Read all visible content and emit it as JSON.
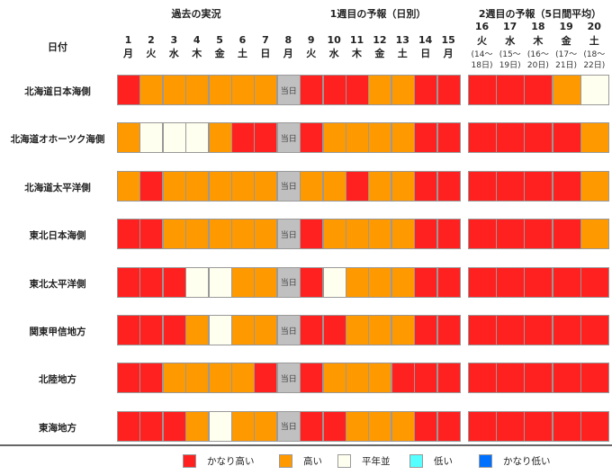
{
  "chart_data": {
    "type": "heatmap",
    "row_header": "日付",
    "section_headers": [
      "過去の実況",
      "1週目の予報（日別）",
      "2週目の予報（5日間平均）"
    ],
    "today_label": "当日",
    "columns": [
      {
        "day": "1",
        "weekday": "月"
      },
      {
        "day": "2",
        "weekday": "火"
      },
      {
        "day": "3",
        "weekday": "水"
      },
      {
        "day": "4",
        "weekday": "木"
      },
      {
        "day": "5",
        "weekday": "金"
      },
      {
        "day": "6",
        "weekday": "土"
      },
      {
        "day": "7",
        "weekday": "日"
      },
      {
        "day": "8",
        "weekday": "月"
      },
      {
        "day": "9",
        "weekday": "火"
      },
      {
        "day": "10",
        "weekday": "水"
      },
      {
        "day": "11",
        "weekday": "木"
      },
      {
        "day": "12",
        "weekday": "金"
      },
      {
        "day": "13",
        "weekday": "土"
      },
      {
        "day": "14",
        "weekday": "日"
      },
      {
        "day": "15",
        "weekday": "月"
      }
    ],
    "week2_columns": [
      {
        "day": "16",
        "weekday": "火",
        "range_a": "(14～",
        "range_b": "18日)"
      },
      {
        "day": "17",
        "weekday": "水",
        "range_a": "(15～",
        "range_b": "19日)"
      },
      {
        "day": "18",
        "weekday": "木",
        "range_a": "(16～",
        "range_b": "20日)"
      },
      {
        "day": "19",
        "weekday": "金",
        "range_a": "(17～",
        "range_b": "21日)"
      },
      {
        "day": "20",
        "weekday": "土",
        "range_a": "(18～",
        "range_b": "22日)"
      }
    ],
    "levels": [
      {
        "key": "vh",
        "label": "かなり高い",
        "color": "#ff2020"
      },
      {
        "key": "h",
        "label": "高い",
        "color": "#ff9900"
      },
      {
        "key": "n",
        "label": "平年並",
        "color": "#fffff0"
      },
      {
        "key": "l",
        "label": "低い",
        "color": "#55ffff"
      },
      {
        "key": "vl",
        "label": "かなり低い",
        "color": "#0070ff"
      }
    ],
    "today_color": "#c0c0c0",
    "rows": [
      {
        "region": "北海道日本海側",
        "week1": [
          "vh",
          "h",
          "h",
          "h",
          "h",
          "h",
          "h",
          "today",
          "vh",
          "vh",
          "vh",
          "h",
          "h",
          "vh",
          "vh"
        ],
        "week2": [
          "vh",
          "vh",
          "vh",
          "h",
          "n"
        ]
      },
      {
        "region": "北海道オホーツク海側",
        "week1": [
          "h",
          "n",
          "n",
          "n",
          "h",
          "vh",
          "vh",
          "today",
          "vh",
          "h",
          "h",
          "h",
          "h",
          "vh",
          "vh"
        ],
        "week2": [
          "vh",
          "vh",
          "vh",
          "vh",
          "h"
        ]
      },
      {
        "region": "北海道太平洋側",
        "week1": [
          "h",
          "vh",
          "h",
          "h",
          "h",
          "h",
          "h",
          "today",
          "h",
          "h",
          "vh",
          "h",
          "h",
          "vh",
          "vh"
        ],
        "week2": [
          "vh",
          "vh",
          "vh",
          "vh",
          "h"
        ]
      },
      {
        "region": "東北日本海側",
        "week1": [
          "vh",
          "vh",
          "h",
          "h",
          "h",
          "h",
          "h",
          "today",
          "vh",
          "h",
          "h",
          "h",
          "h",
          "vh",
          "vh"
        ],
        "week2": [
          "vh",
          "vh",
          "vh",
          "vh",
          "h"
        ]
      },
      {
        "region": "東北太平洋側",
        "week1": [
          "vh",
          "vh",
          "vh",
          "n",
          "n",
          "h",
          "h",
          "today",
          "vh",
          "n",
          "h",
          "h",
          "h",
          "vh",
          "vh"
        ],
        "week2": [
          "vh",
          "vh",
          "vh",
          "vh",
          "vh"
        ]
      },
      {
        "region": "関東甲信地方",
        "week1": [
          "vh",
          "vh",
          "vh",
          "h",
          "n",
          "h",
          "h",
          "today",
          "vh",
          "vh",
          "h",
          "h",
          "h",
          "vh",
          "vh"
        ],
        "week2": [
          "vh",
          "vh",
          "vh",
          "vh",
          "vh"
        ]
      },
      {
        "region": "北陸地方",
        "week1": [
          "vh",
          "vh",
          "h",
          "h",
          "h",
          "h",
          "vh",
          "today",
          "vh",
          "h",
          "h",
          "h",
          "vh",
          "vh",
          "vh"
        ],
        "week2": [
          "vh",
          "vh",
          "vh",
          "vh",
          "vh"
        ]
      },
      {
        "region": "東海地方",
        "week1": [
          "vh",
          "vh",
          "vh",
          "h",
          "n",
          "h",
          "h",
          "today",
          "vh",
          "vh",
          "h",
          "h",
          "h",
          "vh",
          "vh"
        ],
        "week2": [
          "vh",
          "vh",
          "vh",
          "vh",
          "vh"
        ]
      }
    ]
  }
}
